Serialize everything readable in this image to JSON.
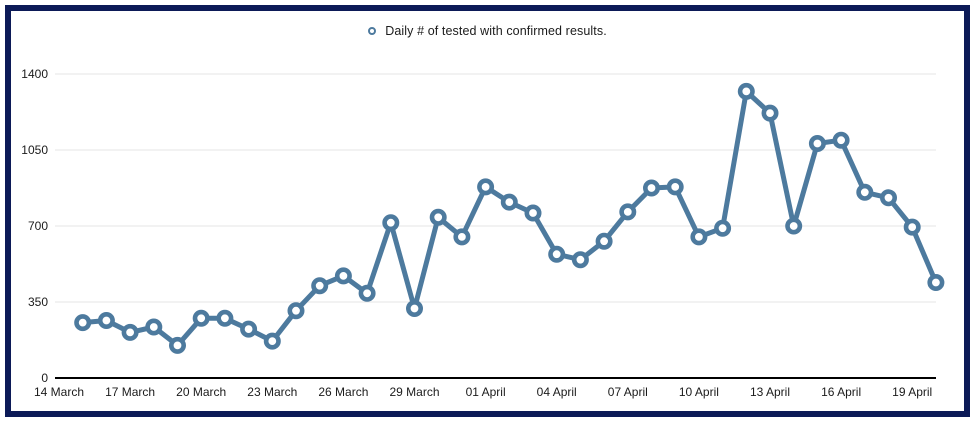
{
  "frame": {
    "border_color": "#0c1a57",
    "background_color": "#ffffff"
  },
  "legend": {
    "label": "Daily # of tested with confirmed results.",
    "marker_color": "#4d7a9e"
  },
  "chart_data": {
    "type": "line",
    "title": "",
    "series_name": "Daily # of tested with confirmed results.",
    "line_color": "#4d7a9e",
    "marker_style": "hollow-circle",
    "grid": "horizontal",
    "gridline_color": "#e6e6e6",
    "baseline_color": "#000000",
    "ylim": [
      0,
      1400
    ],
    "y_ticks": [
      0,
      350,
      700,
      1050,
      1400
    ],
    "x_axis_start_label": "14 March",
    "x_tick_interval_days": 3,
    "x_tick_labels": [
      "14 March",
      "17 March",
      "20 March",
      "23 March",
      "26 March",
      "29 March",
      "01 April",
      "04 April",
      "07 April",
      "10 April",
      "13 April",
      "16 April",
      "19 April"
    ],
    "first_point_day_offset": 1,
    "x": [
      "15 March",
      "16 March",
      "17 March",
      "18 March",
      "19 March",
      "20 March",
      "21 March",
      "22 March",
      "23 March",
      "24 March",
      "25 March",
      "26 March",
      "27 March",
      "28 March",
      "29 March",
      "30 March",
      "31 March",
      "01 April",
      "02 April",
      "03 April",
      "04 April",
      "05 April",
      "06 April",
      "07 April",
      "08 April",
      "09 April",
      "10 April",
      "11 April",
      "12 April",
      "13 April",
      "14 April",
      "15 April",
      "16 April",
      "17 April",
      "18 April",
      "19 April",
      "20 April"
    ],
    "values": [
      255,
      265,
      210,
      235,
      150,
      275,
      275,
      225,
      170,
      310,
      425,
      470,
      390,
      715,
      320,
      740,
      650,
      880,
      810,
      760,
      570,
      545,
      630,
      765,
      875,
      880,
      650,
      690,
      1320,
      1220,
      700,
      1080,
      1095,
      855,
      830,
      695,
      440
    ]
  }
}
